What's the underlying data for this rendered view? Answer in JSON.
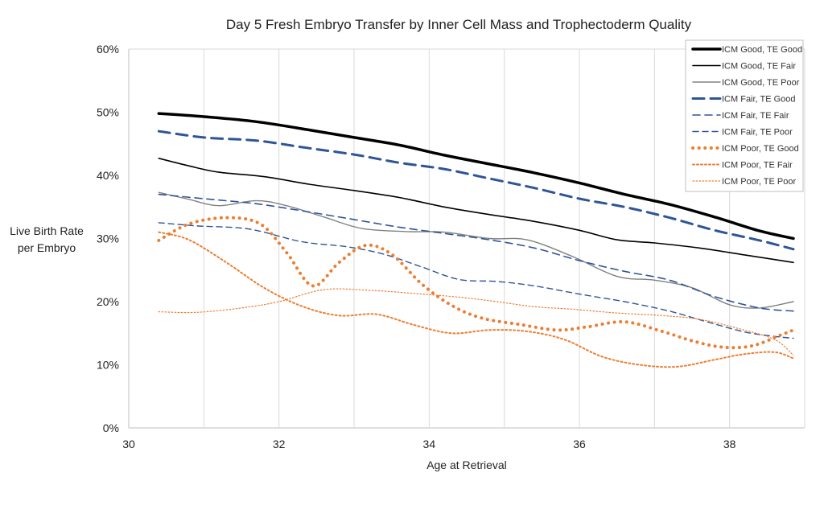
{
  "chart_data": {
    "type": "line",
    "title": "Day 5 Fresh Embryo Transfer by Inner Cell Mass and Trophectoderm Quality",
    "xlabel": "Age at Retrieval",
    "ylabel": [
      "Live Birth Rate",
      "per Embryo"
    ],
    "xlim": [
      30,
      39
    ],
    "ylim": [
      0,
      0.6
    ],
    "x_ticks": [
      30,
      32,
      34,
      36,
      38
    ],
    "y_ticks": [
      0,
      0.1,
      0.2,
      0.3,
      0.4,
      0.5,
      0.6
    ],
    "y_tick_labels": [
      "0%",
      "10%",
      "20%",
      "30%",
      "40%",
      "50%",
      "60%"
    ],
    "grid": "vertical",
    "legend_position": "top-right",
    "series": [
      {
        "name": "ICM Good, TE Good",
        "color": "#000000",
        "width": 3.5,
        "dash": "solid",
        "points": [
          [
            30.4,
            0.498
          ],
          [
            31,
            0.493
          ],
          [
            31.7,
            0.485
          ],
          [
            32.4,
            0.472
          ],
          [
            33,
            0.46
          ],
          [
            33.6,
            0.448
          ],
          [
            34.2,
            0.432
          ],
          [
            34.8,
            0.418
          ],
          [
            35.4,
            0.404
          ],
          [
            36,
            0.388
          ],
          [
            36.6,
            0.37
          ],
          [
            37.2,
            0.354
          ],
          [
            37.8,
            0.334
          ],
          [
            38.4,
            0.312
          ],
          [
            38.85,
            0.3
          ]
        ]
      },
      {
        "name": "ICM Good, TE Fair",
        "color": "#000000",
        "width": 1.6,
        "dash": "solid",
        "points": [
          [
            30.4,
            0.427
          ],
          [
            30.8,
            0.415
          ],
          [
            31.2,
            0.405
          ],
          [
            31.8,
            0.398
          ],
          [
            32.4,
            0.386
          ],
          [
            33,
            0.376
          ],
          [
            33.6,
            0.365
          ],
          [
            34.2,
            0.35
          ],
          [
            34.8,
            0.338
          ],
          [
            35.4,
            0.327
          ],
          [
            36,
            0.313
          ],
          [
            36.5,
            0.298
          ],
          [
            37,
            0.293
          ],
          [
            37.6,
            0.285
          ],
          [
            38.2,
            0.274
          ],
          [
            38.85,
            0.262
          ]
        ]
      },
      {
        "name": "ICM Good, TE Poor",
        "color": "#808080",
        "width": 1.4,
        "dash": "solid",
        "points": [
          [
            30.4,
            0.373
          ],
          [
            30.8,
            0.362
          ],
          [
            31.2,
            0.352
          ],
          [
            31.7,
            0.36
          ],
          [
            32.1,
            0.352
          ],
          [
            32.6,
            0.334
          ],
          [
            33.1,
            0.316
          ],
          [
            33.7,
            0.311
          ],
          [
            34.2,
            0.31
          ],
          [
            34.8,
            0.3
          ],
          [
            35.3,
            0.298
          ],
          [
            35.9,
            0.272
          ],
          [
            36.5,
            0.24
          ],
          [
            37,
            0.234
          ],
          [
            37.5,
            0.222
          ],
          [
            38,
            0.195
          ],
          [
            38.4,
            0.19
          ],
          [
            38.85,
            0.2
          ]
        ]
      },
      {
        "name": "ICM Fair, TE Good",
        "color": "#2f5597",
        "width": 3,
        "dash": "14 8",
        "points": [
          [
            30.4,
            0.47
          ],
          [
            31,
            0.46
          ],
          [
            31.7,
            0.455
          ],
          [
            32.4,
            0.443
          ],
          [
            33,
            0.433
          ],
          [
            33.6,
            0.42
          ],
          [
            34.2,
            0.41
          ],
          [
            34.8,
            0.395
          ],
          [
            35.4,
            0.38
          ],
          [
            36,
            0.363
          ],
          [
            36.6,
            0.35
          ],
          [
            37.2,
            0.333
          ],
          [
            37.8,
            0.313
          ],
          [
            38.4,
            0.297
          ],
          [
            38.85,
            0.283
          ]
        ]
      },
      {
        "name": "ICM Fair, TE Fair",
        "color": "#2f5597",
        "width": 1.6,
        "dash": "9 6",
        "points": [
          [
            30.4,
            0.37
          ],
          [
            31,
            0.363
          ],
          [
            31.7,
            0.355
          ],
          [
            32.4,
            0.342
          ],
          [
            33,
            0.33
          ],
          [
            33.6,
            0.318
          ],
          [
            34.2,
            0.308
          ],
          [
            34.8,
            0.298
          ],
          [
            35.4,
            0.285
          ],
          [
            36,
            0.265
          ],
          [
            36.6,
            0.248
          ],
          [
            37.2,
            0.234
          ],
          [
            37.8,
            0.208
          ],
          [
            38.4,
            0.19
          ],
          [
            38.85,
            0.185
          ]
        ]
      },
      {
        "name": "ICM Fair, TE Poor",
        "color": "#2f5597",
        "width": 1.4,
        "dash": "7 5",
        "points": [
          [
            30.4,
            0.325
          ],
          [
            30.9,
            0.32
          ],
          [
            31.6,
            0.315
          ],
          [
            32.3,
            0.295
          ],
          [
            32.9,
            0.287
          ],
          [
            33.4,
            0.275
          ],
          [
            33.9,
            0.255
          ],
          [
            34.4,
            0.235
          ],
          [
            34.9,
            0.232
          ],
          [
            35.4,
            0.225
          ],
          [
            36,
            0.212
          ],
          [
            36.6,
            0.2
          ],
          [
            37.2,
            0.185
          ],
          [
            37.7,
            0.168
          ],
          [
            38.2,
            0.152
          ],
          [
            38.6,
            0.145
          ],
          [
            38.85,
            0.142
          ]
        ]
      },
      {
        "name": "ICM Poor, TE Good",
        "color": "#ed7d31",
        "width": 4,
        "dash": "0.1 7.5",
        "points": [
          [
            30.4,
            0.297
          ],
          [
            30.8,
            0.323
          ],
          [
            31.3,
            0.333
          ],
          [
            31.75,
            0.323
          ],
          [
            32.1,
            0.278
          ],
          [
            32.45,
            0.225
          ],
          [
            32.8,
            0.262
          ],
          [
            33.15,
            0.289
          ],
          [
            33.5,
            0.275
          ],
          [
            33.9,
            0.228
          ],
          [
            34.3,
            0.194
          ],
          [
            34.7,
            0.174
          ],
          [
            35.2,
            0.164
          ],
          [
            35.7,
            0.155
          ],
          [
            36.1,
            0.16
          ],
          [
            36.6,
            0.168
          ],
          [
            37.1,
            0.153
          ],
          [
            37.5,
            0.138
          ],
          [
            37.9,
            0.128
          ],
          [
            38.3,
            0.13
          ],
          [
            38.7,
            0.148
          ],
          [
            38.85,
            0.155
          ]
        ]
      },
      {
        "name": "ICM Poor, TE Fair",
        "color": "#ed7d31",
        "width": 2,
        "dash": "2 3",
        "points": [
          [
            30.4,
            0.31
          ],
          [
            30.8,
            0.298
          ],
          [
            31.3,
            0.262
          ],
          [
            31.8,
            0.222
          ],
          [
            32.3,
            0.193
          ],
          [
            32.8,
            0.178
          ],
          [
            33.3,
            0.18
          ],
          [
            33.8,
            0.163
          ],
          [
            34.3,
            0.15
          ],
          [
            34.8,
            0.155
          ],
          [
            35.3,
            0.153
          ],
          [
            35.8,
            0.14
          ],
          [
            36.3,
            0.113
          ],
          [
            36.8,
            0.1
          ],
          [
            37.3,
            0.097
          ],
          [
            37.8,
            0.108
          ],
          [
            38.2,
            0.117
          ],
          [
            38.6,
            0.12
          ],
          [
            38.85,
            0.11
          ]
        ]
      },
      {
        "name": "ICM Poor, TE Poor",
        "color": "#ed7d31",
        "width": 1.2,
        "dash": "1.5 2.5",
        "points": [
          [
            30.4,
            0.184
          ],
          [
            30.9,
            0.183
          ],
          [
            31.5,
            0.19
          ],
          [
            32,
            0.2
          ],
          [
            32.6,
            0.219
          ],
          [
            33.2,
            0.218
          ],
          [
            33.8,
            0.213
          ],
          [
            34.4,
            0.207
          ],
          [
            34.9,
            0.2
          ],
          [
            35.4,
            0.192
          ],
          [
            35.9,
            0.188
          ],
          [
            36.5,
            0.182
          ],
          [
            37.1,
            0.178
          ],
          [
            37.6,
            0.172
          ],
          [
            38.1,
            0.158
          ],
          [
            38.6,
            0.14
          ],
          [
            38.85,
            0.115
          ]
        ]
      }
    ]
  }
}
